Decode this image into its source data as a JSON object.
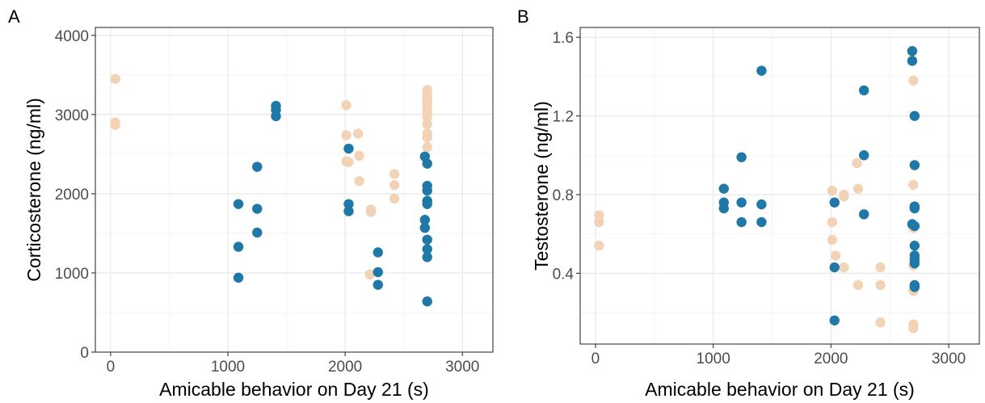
{
  "colors": {
    "blue": "#1f78a6",
    "tan": "#f2d3b6"
  },
  "chart_data": [
    {
      "type": "scatter",
      "panel_label": "A",
      "xlabel": "Amicable behavior on Day 21 (s)",
      "ylabel": "Corticosterone (ng/ml)",
      "xlim": [
        -130,
        3260
      ],
      "ylim": [
        0,
        4100
      ],
      "xticks": [
        0,
        1000,
        2000,
        3000
      ],
      "yticks": [
        0,
        1000,
        2000,
        3000,
        4000
      ],
      "xticklabels": [
        "0",
        "1000",
        "2000",
        "3000"
      ],
      "yticklabels": [
        "0",
        "1000",
        "2000",
        "3000",
        "4000"
      ],
      "grid": true,
      "legend": "none",
      "series": [
        {
          "color": "tan",
          "points": [
            [
              40,
              3450
            ],
            [
              40,
              2900
            ],
            [
              40,
              2870
            ],
            [
              2010,
              3120
            ],
            [
              2010,
              2740
            ],
            [
              2010,
              2410
            ],
            [
              2030,
              2400
            ],
            [
              2110,
              2760
            ],
            [
              2120,
              2480
            ],
            [
              2120,
              2160
            ],
            [
              2220,
              1800
            ],
            [
              2220,
              1770
            ],
            [
              2210,
              980
            ],
            [
              2420,
              2250
            ],
            [
              2420,
              2110
            ],
            [
              2420,
              1940
            ],
            [
              2700,
              3310
            ],
            [
              2700,
              3240
            ],
            [
              2700,
              3180
            ],
            [
              2700,
              3140
            ],
            [
              2700,
              3080
            ],
            [
              2700,
              3020
            ],
            [
              2700,
              2970
            ],
            [
              2700,
              2880
            ],
            [
              2700,
              2760
            ],
            [
              2700,
              2710
            ],
            [
              2700,
              2590
            ]
          ]
        },
        {
          "color": "blue",
          "points": [
            [
              1090,
              1870
            ],
            [
              1090,
              1330
            ],
            [
              1090,
              940
            ],
            [
              1250,
              2340
            ],
            [
              1250,
              1810
            ],
            [
              1250,
              1510
            ],
            [
              1410,
              3110
            ],
            [
              1410,
              3060
            ],
            [
              1410,
              2980
            ],
            [
              2030,
              2570
            ],
            [
              2030,
              1870
            ],
            [
              2030,
              1780
            ],
            [
              2280,
              1260
            ],
            [
              2280,
              1010
            ],
            [
              2280,
              850
            ],
            [
              2680,
              2470
            ],
            [
              2680,
              1670
            ],
            [
              2680,
              1570
            ],
            [
              2700,
              2380
            ],
            [
              2700,
              2100
            ],
            [
              2700,
              2040
            ],
            [
              2700,
              1910
            ],
            [
              2700,
              1870
            ],
            [
              2700,
              1420
            ],
            [
              2700,
              1300
            ],
            [
              2700,
              1200
            ],
            [
              2700,
              640
            ]
          ]
        }
      ]
    },
    {
      "type": "scatter",
      "panel_label": "B",
      "xlabel": "Amicable behavior on Day 21 (s)",
      "ylabel": "Testosterone (ng/ml)",
      "xlim": [
        -130,
        3260
      ],
      "ylim": [
        0.04,
        1.65
      ],
      "xticks": [
        0,
        1000,
        2000,
        3000
      ],
      "yticks": [
        0.4,
        0.8,
        1.2,
        1.6
      ],
      "xticklabels": [
        "0",
        "1000",
        "2000",
        "3000"
      ],
      "yticklabels": [
        "0.4",
        "0.8",
        "1.2",
        "1.6"
      ],
      "grid": true,
      "legend": "none",
      "series": [
        {
          "color": "tan",
          "points": [
            [
              30,
              0.695
            ],
            [
              30,
              0.66
            ],
            [
              30,
              0.54
            ],
            [
              2010,
              0.82
            ],
            [
              2010,
              0.66
            ],
            [
              2010,
              0.57
            ],
            [
              2040,
              0.49
            ],
            [
              2110,
              0.8
            ],
            [
              2110,
              0.79
            ],
            [
              2110,
              0.43
            ],
            [
              2220,
              0.96
            ],
            [
              2230,
              0.83
            ],
            [
              2230,
              0.34
            ],
            [
              2420,
              0.43
            ],
            [
              2420,
              0.34
            ],
            [
              2420,
              0.15
            ],
            [
              2700,
              1.38
            ],
            [
              2700,
              0.85
            ],
            [
              2700,
              0.63
            ],
            [
              2700,
              0.44
            ],
            [
              2700,
              0.31
            ],
            [
              2700,
              0.14
            ],
            [
              2700,
              0.12
            ]
          ]
        },
        {
          "color": "blue",
          "points": [
            [
              1090,
              0.83
            ],
            [
              1090,
              0.76
            ],
            [
              1090,
              0.73
            ],
            [
              1240,
              0.99
            ],
            [
              1240,
              0.76
            ],
            [
              1240,
              0.66
            ],
            [
              1410,
              1.43
            ],
            [
              1410,
              0.75
            ],
            [
              1410,
              0.66
            ],
            [
              2030,
              0.76
            ],
            [
              2030,
              0.43
            ],
            [
              2030,
              0.16
            ],
            [
              2280,
              1.33
            ],
            [
              2280,
              1.0
            ],
            [
              2280,
              0.7
            ],
            [
              2690,
              1.53
            ],
            [
              2690,
              1.48
            ],
            [
              2690,
              0.65
            ],
            [
              2710,
              1.2
            ],
            [
              2710,
              0.95
            ],
            [
              2710,
              0.74
            ],
            [
              2710,
              0.73
            ],
            [
              2710,
              0.64
            ],
            [
              2710,
              0.54
            ],
            [
              2710,
              0.49
            ],
            [
              2710,
              0.47
            ],
            [
              2710,
              0.45
            ],
            [
              2710,
              0.34
            ],
            [
              2710,
              0.33
            ]
          ]
        }
      ]
    }
  ]
}
